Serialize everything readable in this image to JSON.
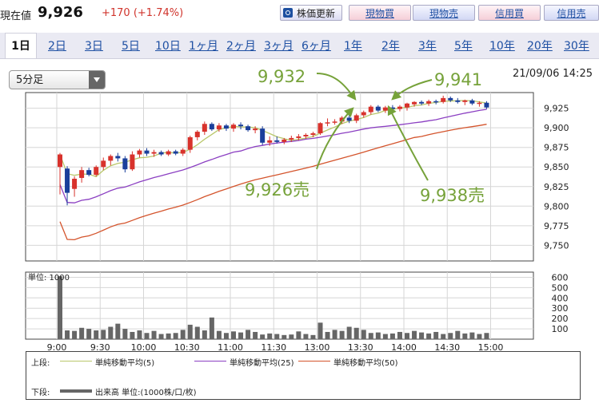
{
  "quote": {
    "label": "現在値",
    "price": "9,926",
    "change": "+170 (+1.74%)"
  },
  "buttons": {
    "update": "株価更新",
    "spot_buy": "現物買",
    "spot_sell": "現物売",
    "margin_buy": "信用買",
    "margin_sell": "信用売"
  },
  "tabs": [
    "1日",
    "2日",
    "3日",
    "5日",
    "10日",
    "1ヶ月",
    "2ヶ月",
    "3ヶ月",
    "6ヶ月",
    "1年",
    "2年",
    "3年",
    "5年",
    "10年",
    "20年",
    "30年"
  ],
  "active_tab": "1日",
  "interval_select": "5分足",
  "datetime": "21/09/06 14:25",
  "annotations": {
    "a1": "9,932",
    "a2": "9,941",
    "a3": "9,926売",
    "a4": "9,938売"
  },
  "legend": {
    "upper_label": "上段:",
    "lower_label": "下段:",
    "ma5": "単純移動平均(5)",
    "ma25": "単純移動平均(25)",
    "ma50": "単純移動平均(50)",
    "volume": "出来高 単位:(1000株/口/枚)"
  },
  "colors": {
    "up": "#d8322c",
    "down": "#1a3f9b",
    "ma5": "#b9c76a",
    "ma25": "#8b3fc2",
    "ma50": "#d4542c",
    "annotation": "#76a23a",
    "volume": "#666666"
  },
  "chart_data": {
    "type": "candlestick",
    "x_ticks": [
      "9:00",
      "9:30",
      "10:00",
      "10:30",
      "11:00",
      "11:30",
      "13:00",
      "13:30",
      "14:00",
      "14:30",
      "15:00"
    ],
    "price_ticks": [
      "9,925",
      "9,900",
      "9,875",
      "9,850",
      "9,825",
      "9,800",
      "9,775",
      "9,750"
    ],
    "price_ylim": [
      9730,
      9945
    ],
    "volume_label": "単位: 1000",
    "volume_ticks": [
      "600",
      "500",
      "400",
      "300",
      "200",
      "100"
    ],
    "volume_ylim": [
      0,
      650
    ],
    "candles": [
      {
        "o": 9850,
        "h": 9868,
        "l": 9815,
        "c": 9866
      },
      {
        "o": 9848,
        "h": 9851,
        "l": 9801,
        "c": 9817
      },
      {
        "o": 9822,
        "h": 9838,
        "l": 9812,
        "c": 9835
      },
      {
        "o": 9836,
        "h": 9850,
        "l": 9830,
        "c": 9846
      },
      {
        "o": 9846,
        "h": 9849,
        "l": 9838,
        "c": 9840
      },
      {
        "o": 9840,
        "h": 9852,
        "l": 9838,
        "c": 9850
      },
      {
        "o": 9850,
        "h": 9862,
        "l": 9846,
        "c": 9858
      },
      {
        "o": 9858,
        "h": 9866,
        "l": 9852,
        "c": 9864
      },
      {
        "o": 9864,
        "h": 9868,
        "l": 9857,
        "c": 9861
      },
      {
        "o": 9861,
        "h": 9864,
        "l": 9843,
        "c": 9847
      },
      {
        "o": 9847,
        "h": 9870,
        "l": 9845,
        "c": 9866
      },
      {
        "o": 9866,
        "h": 9873,
        "l": 9862,
        "c": 9871
      },
      {
        "o": 9871,
        "h": 9874,
        "l": 9864,
        "c": 9867
      },
      {
        "o": 9867,
        "h": 9872,
        "l": 9863,
        "c": 9869
      },
      {
        "o": 9869,
        "h": 9871,
        "l": 9864,
        "c": 9866
      },
      {
        "o": 9866,
        "h": 9872,
        "l": 9864,
        "c": 9870
      },
      {
        "o": 9870,
        "h": 9872,
        "l": 9865,
        "c": 9867
      },
      {
        "o": 9867,
        "h": 9874,
        "l": 9864,
        "c": 9872
      },
      {
        "o": 9872,
        "h": 9890,
        "l": 9868,
        "c": 9888
      },
      {
        "o": 9888,
        "h": 9897,
        "l": 9884,
        "c": 9895
      },
      {
        "o": 9895,
        "h": 9908,
        "l": 9891,
        "c": 9905
      },
      {
        "o": 9905,
        "h": 9907,
        "l": 9896,
        "c": 9898
      },
      {
        "o": 9898,
        "h": 9906,
        "l": 9895,
        "c": 9903
      },
      {
        "o": 9903,
        "h": 9905,
        "l": 9896,
        "c": 9899
      },
      {
        "o": 9899,
        "h": 9906,
        "l": 9895,
        "c": 9904
      },
      {
        "o": 9904,
        "h": 9907,
        "l": 9898,
        "c": 9902
      },
      {
        "o": 9902,
        "h": 9904,
        "l": 9895,
        "c": 9897
      },
      {
        "o": 9897,
        "h": 9902,
        "l": 9893,
        "c": 9899
      },
      {
        "o": 9899,
        "h": 9902,
        "l": 9878,
        "c": 9881
      },
      {
        "o": 9881,
        "h": 9889,
        "l": 9877,
        "c": 9884
      },
      {
        "o": 9884,
        "h": 9889,
        "l": 9880,
        "c": 9882
      },
      {
        "o": 9882,
        "h": 9887,
        "l": 9879,
        "c": 9885
      },
      {
        "o": 9885,
        "h": 9890,
        "l": 9882,
        "c": 9887
      },
      {
        "o": 9887,
        "h": 9892,
        "l": 9884,
        "c": 9889
      },
      {
        "o": 9889,
        "h": 9893,
        "l": 9886,
        "c": 9891
      },
      {
        "o": 9891,
        "h": 9895,
        "l": 9888,
        "c": 9893
      },
      {
        "o": 9893,
        "h": 9907,
        "l": 9891,
        "c": 9906
      },
      {
        "o": 9906,
        "h": 9912,
        "l": 9902,
        "c": 9907
      },
      {
        "o": 9907,
        "h": 9911,
        "l": 9904,
        "c": 9908
      },
      {
        "o": 9908,
        "h": 9915,
        "l": 9905,
        "c": 9913
      },
      {
        "o": 9913,
        "h": 9916,
        "l": 9906,
        "c": 9909
      },
      {
        "o": 9909,
        "h": 9918,
        "l": 9906,
        "c": 9916
      },
      {
        "o": 9916,
        "h": 9922,
        "l": 9913,
        "c": 9920
      },
      {
        "o": 9920,
        "h": 9929,
        "l": 9917,
        "c": 9927
      },
      {
        "o": 9927,
        "h": 9929,
        "l": 9920,
        "c": 9922
      },
      {
        "o": 9922,
        "h": 9928,
        "l": 9919,
        "c": 9926
      },
      {
        "o": 9926,
        "h": 9929,
        "l": 9922,
        "c": 9924
      },
      {
        "o": 9924,
        "h": 9929,
        "l": 9921,
        "c": 9927
      },
      {
        "o": 9926,
        "h": 9932,
        "l": 9922,
        "c": 9931
      },
      {
        "o": 9930,
        "h": 9934,
        "l": 9927,
        "c": 9933
      },
      {
        "o": 9933,
        "h": 9935,
        "l": 9929,
        "c": 9931
      },
      {
        "o": 9931,
        "h": 9936,
        "l": 9928,
        "c": 9934
      },
      {
        "o": 9934,
        "h": 9936,
        "l": 9930,
        "c": 9933
      },
      {
        "o": 9933,
        "h": 9941,
        "l": 9931,
        "c": 9938
      },
      {
        "o": 9938,
        "h": 9940,
        "l": 9933,
        "c": 9935
      },
      {
        "o": 9935,
        "h": 9938,
        "l": 9931,
        "c": 9933
      },
      {
        "o": 9933,
        "h": 9936,
        "l": 9929,
        "c": 9935
      },
      {
        "o": 9935,
        "h": 9937,
        "l": 9929,
        "c": 9931
      },
      {
        "o": 9931,
        "h": 9934,
        "l": 9927,
        "c": 9932
      },
      {
        "o": 9932,
        "h": 9934,
        "l": 9924,
        "c": 9926
      }
    ],
    "volume": [
      610,
      85,
      80,
      110,
      100,
      85,
      90,
      120,
      150,
      100,
      70,
      85,
      60,
      80,
      50,
      55,
      60,
      90,
      140,
      120,
      85,
      210,
      80,
      60,
      75,
      65,
      90,
      70,
      45,
      55,
      50,
      40,
      45,
      75,
      50,
      40,
      160,
      70,
      90,
      80,
      120,
      110,
      90,
      60,
      65,
      50,
      55,
      70,
      60,
      80,
      65,
      55,
      70,
      50,
      60,
      80,
      55,
      65,
      50,
      60
    ]
  }
}
